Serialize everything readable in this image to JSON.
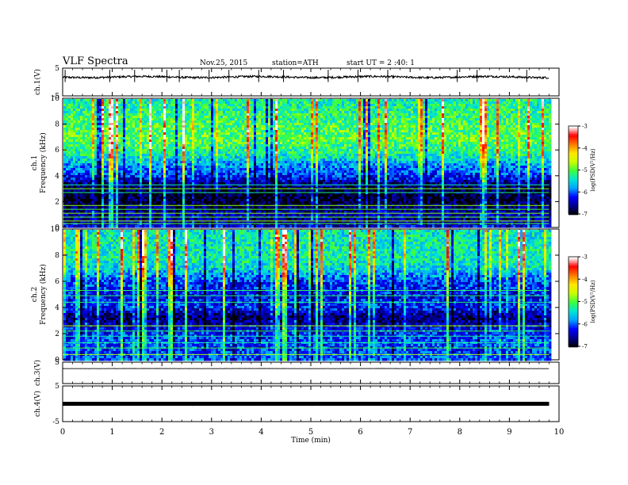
{
  "header": {
    "title": "VLF  Spectra",
    "date": "Nov.25, 2015",
    "station": "station=ATH",
    "start": "start  UT  =   2  :40: 1"
  },
  "chart_data": [
    {
      "type": "line",
      "name": "ch1-waveform",
      "ylabel": "ch.1(V)",
      "ylim": [
        -5,
        5
      ],
      "yticks": [
        "5",
        "-5"
      ],
      "xlim": [
        0,
        10
      ],
      "data_range_x": [
        0,
        9.8
      ],
      "baseline_v": 1.8,
      "noise_v": 0.35,
      "spikes_at_min": [
        0.05,
        0.95,
        1.45,
        2.1,
        2.35,
        2.95,
        3.35,
        3.95,
        4.45,
        5.35,
        5.95,
        6.55,
        7.95,
        8.35,
        9.35
      ],
      "spike_amplitude_v": 2.6
    },
    {
      "type": "heatmap",
      "name": "ch1-spectrogram",
      "ylabel": "ch.1\nFrequency (kHz)",
      "xlim": [
        0,
        10
      ],
      "data_range_x": [
        0,
        9.8
      ],
      "ylim": [
        0,
        10
      ],
      "yticks": [
        "0",
        "2",
        "4",
        "6",
        "8",
        "10"
      ],
      "colorbar": {
        "label": "log(PSD(V²/Hz)",
        "ticks": [
          "-3",
          "-4",
          "-5",
          "-6",
          "-7"
        ],
        "range": [
          -7,
          -3
        ]
      },
      "colormap": [
        "#000000",
        "#0000ff",
        "#00aaff",
        "#00ffaa",
        "#66ff00",
        "#ffff00",
        "#ff8800",
        "#ff0000",
        "#ffcccc",
        "#ffffff"
      ],
      "freq_profile_logpsd": [
        {
          "f": 0.0,
          "v": -6.2
        },
        {
          "f": 0.6,
          "v": -6.6
        },
        {
          "f": 1.0,
          "v": -6.4
        },
        {
          "f": 1.6,
          "v": -6.7
        },
        {
          "f": 2.5,
          "v": -6.9
        },
        {
          "f": 3.3,
          "v": -6.7
        },
        {
          "f": 4.0,
          "v": -6.2
        },
        {
          "f": 5.0,
          "v": -5.7
        },
        {
          "f": 6.0,
          "v": -5.2
        },
        {
          "f": 7.0,
          "v": -4.95
        },
        {
          "f": 8.0,
          "v": -5.05
        },
        {
          "f": 9.0,
          "v": -5.2
        },
        {
          "f": 10.0,
          "v": -5.3
        }
      ],
      "horizontal_lines_khz": [
        0.3,
        0.5,
        0.8,
        1.1,
        1.4,
        1.7,
        2.7,
        3.0,
        3.3
      ]
    },
    {
      "type": "heatmap",
      "name": "ch2-spectrogram",
      "ylabel": "ch.2\nFrequency (kHz)",
      "xlim": [
        0,
        10
      ],
      "data_range_x": [
        0,
        9.8
      ],
      "ylim": [
        0,
        10
      ],
      "yticks": [
        "0",
        "2",
        "4",
        "6",
        "8",
        "10"
      ],
      "colorbar": {
        "label": "log(PSD(V²/Hz)",
        "ticks": [
          "-3",
          "-4",
          "-5",
          "-6",
          "-7"
        ],
        "range": [
          -7,
          -3
        ]
      },
      "freq_profile_logpsd": [
        {
          "f": 0.0,
          "v": -6.0
        },
        {
          "f": 0.8,
          "v": -6.1
        },
        {
          "f": 1.5,
          "v": -6.0
        },
        {
          "f": 2.5,
          "v": -6.3
        },
        {
          "f": 3.3,
          "v": -6.7
        },
        {
          "f": 4.2,
          "v": -6.1
        },
        {
          "f": 5.0,
          "v": -6.3
        },
        {
          "f": 6.2,
          "v": -6.0
        },
        {
          "f": 7.0,
          "v": -5.5
        },
        {
          "f": 8.0,
          "v": -5.3
        },
        {
          "f": 9.0,
          "v": -5.35
        },
        {
          "f": 10.0,
          "v": -5.4
        }
      ],
      "horizontal_lines_khz": [
        0.4,
        0.9,
        1.3,
        1.8,
        2.2,
        2.6,
        4.4,
        4.9,
        5.3
      ]
    },
    {
      "type": "line",
      "name": "ch3-waveform",
      "ylabel": "ch.3(V)",
      "ylim": [
        -5,
        5
      ],
      "yticks": [
        "5"
      ],
      "xlim": [
        0,
        10
      ],
      "data_range_x": [
        0,
        9.8
      ],
      "baseline_v": 2.0,
      "noise_v": 0.03
    },
    {
      "type": "line",
      "name": "ch4-waveform",
      "ylabel": "ch.4(V)",
      "ylim": [
        -5,
        5
      ],
      "yticks": [
        "5",
        "-5"
      ],
      "xlim": [
        0,
        10
      ],
      "data_range_x": [
        0,
        9.8
      ],
      "baseline_v": 0.0,
      "noise_v": 0.25
    }
  ],
  "x_axis": {
    "label": "Time  (min)",
    "ticks": [
      "0",
      "1",
      "2",
      "3",
      "4",
      "5",
      "6",
      "7",
      "8",
      "9",
      "10"
    ],
    "range": [
      0,
      10
    ]
  }
}
